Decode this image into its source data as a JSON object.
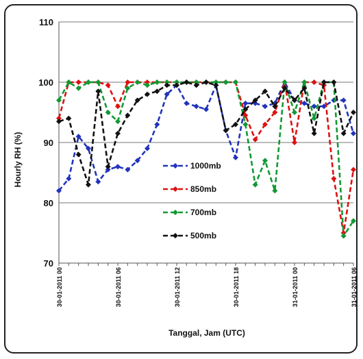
{
  "chart_data": {
    "type": "line",
    "title": "",
    "xlabel": "Tanggal, Jam (UTC)",
    "ylabel": "Hourly RH (%)",
    "ylim": [
      70,
      110
    ],
    "yticks": [
      70,
      80,
      90,
      100,
      110
    ],
    "grid": "horizontal",
    "legend_position": "center-left",
    "x_tick_labels": [
      {
        "index": 0,
        "label": "30-01-2011 00"
      },
      {
        "index": 6,
        "label": "30-01-2011 06"
      },
      {
        "index": 12,
        "label": "30-01-2011 12"
      },
      {
        "index": 18,
        "label": "30-01-2011 18"
      },
      {
        "index": 24,
        "label": "31-01-2011 00"
      },
      {
        "index": 30,
        "label": "31-01-2011 06"
      }
    ],
    "x": [
      0,
      1,
      2,
      3,
      4,
      5,
      6,
      7,
      8,
      9,
      10,
      11,
      12,
      13,
      14,
      15,
      16,
      17,
      18,
      19,
      20,
      21,
      22,
      23,
      24,
      25,
      26,
      27,
      28,
      29,
      30
    ],
    "series": [
      {
        "name": "1000mb",
        "color": "#2233bb",
        "values": [
          82,
          84,
          91,
          89,
          83.5,
          85.5,
          86,
          85.5,
          87,
          89,
          93,
          98,
          99.5,
          96.5,
          96,
          95.5,
          99.5,
          92,
          87.5,
          96.5,
          96.5,
          96,
          96.5,
          100,
          97,
          96.5,
          96,
          96,
          97,
          97,
          91.5
        ]
      },
      {
        "name": "850mb",
        "color": "#dd1111",
        "values": [
          94,
          100,
          100,
          100,
          100,
          99.5,
          96,
          100,
          100,
          100,
          100,
          100,
          100,
          100,
          100,
          100,
          100,
          100,
          100,
          94.5,
          90.5,
          93,
          95,
          100,
          90,
          100,
          100,
          99.5,
          84,
          75,
          85.5
        ]
      },
      {
        "name": "700mb",
        "color": "#119933",
        "values": [
          97,
          100,
          99,
          100,
          100,
          95,
          93.5,
          99,
          100,
          99.5,
          100,
          100,
          100,
          100,
          100,
          100,
          100,
          100,
          100,
          93,
          83,
          87,
          82,
          100,
          95,
          100,
          94,
          100,
          100,
          74.5,
          77
        ]
      },
      {
        "name": "500mb",
        "color": "#111111",
        "values": [
          93.5,
          94,
          88,
          83,
          98.5,
          86,
          91.5,
          94.5,
          97,
          98,
          98.5,
          99.5,
          99.5,
          100,
          99.5,
          100,
          99.5,
          92,
          93,
          95.5,
          97,
          98.5,
          96,
          99,
          97,
          99,
          91.5,
          100,
          100,
          91.5,
          95
        ]
      }
    ]
  }
}
